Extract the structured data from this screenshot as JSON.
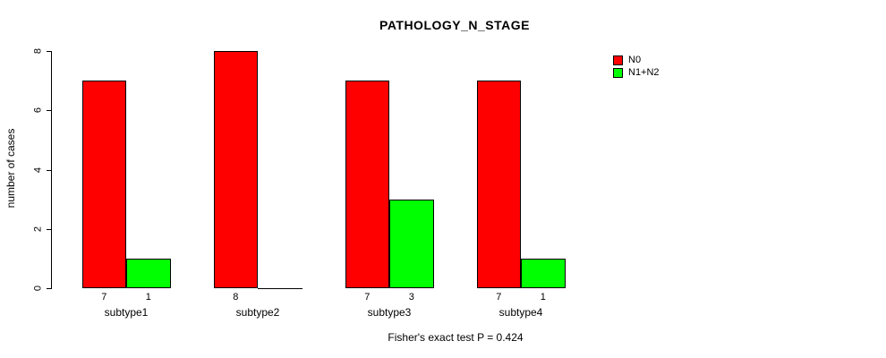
{
  "title": "PATHOLOGY_N_STAGE",
  "footnote": "Fisher's exact test P = 0.424",
  "y_axis": {
    "label": "number of cases",
    "ticks": [
      0,
      2,
      4,
      6,
      8
    ]
  },
  "legend": {
    "items": [
      {
        "label": "N0",
        "color": "#FF0000"
      },
      {
        "label": "N1+N2",
        "color": "#00FF00"
      }
    ]
  },
  "chart_data": {
    "type": "bar",
    "categories": [
      "subtype1",
      "subtype2",
      "subtype3",
      "subtype4"
    ],
    "series": [
      {
        "name": "N0",
        "color": "#FF0000",
        "values": [
          7,
          8,
          7,
          7
        ]
      },
      {
        "name": "N1+N2",
        "color": "#00FF00",
        "values": [
          1,
          0,
          3,
          1
        ]
      }
    ],
    "title": "PATHOLOGY_N_STAGE",
    "xlabel": "",
    "ylabel": "number of cases",
    "ylim": [
      0,
      8
    ],
    "grid": false,
    "legend_position": "right",
    "bar_value_labels": "shown under each bar; omitted when value is 0",
    "annotation": "Fisher's exact test P = 0.424"
  }
}
